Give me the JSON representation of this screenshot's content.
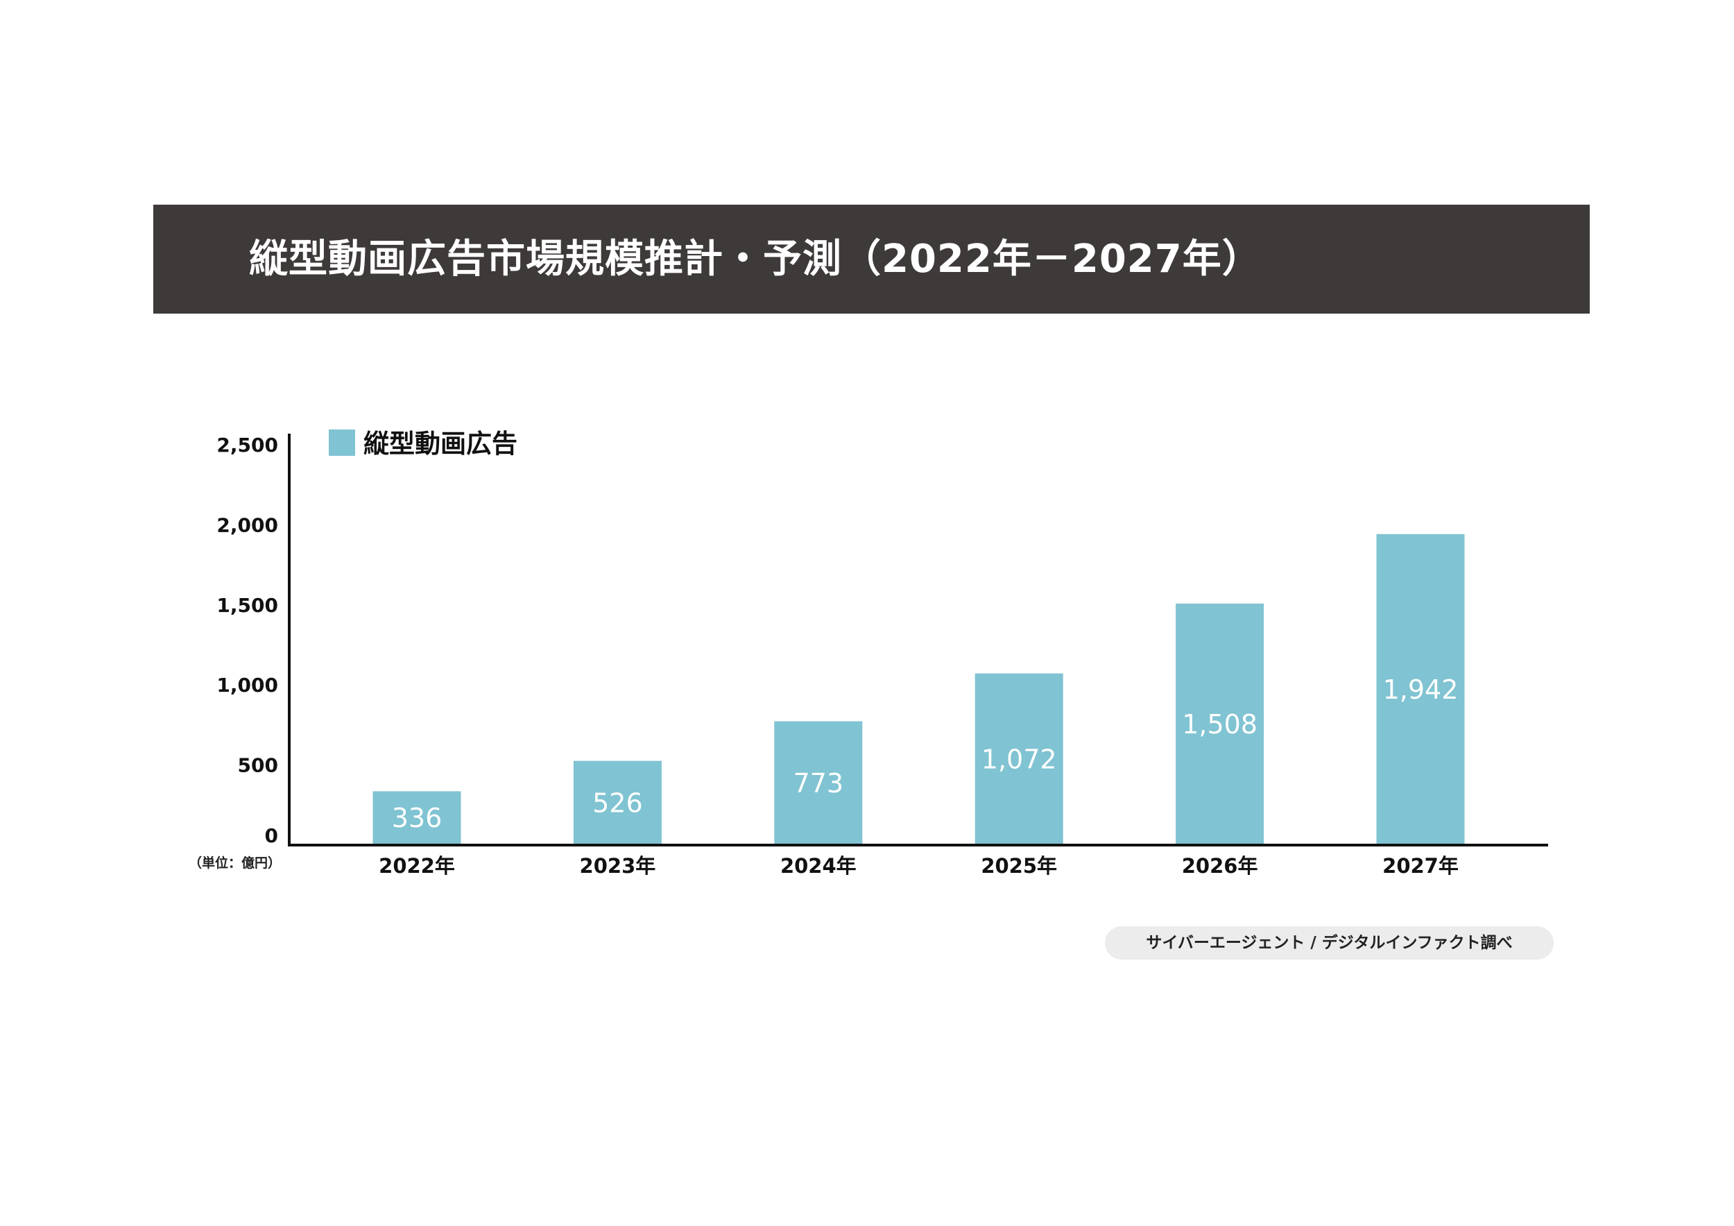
{
  "title": "縦型動画広告市場規模推計・予測（2022年－2027年）",
  "source": "サイバーエージェント / デジタルインファクト調べ",
  "colors": {
    "header_bg": "#3e3a39",
    "bar": "#80c3d2"
  },
  "chart_data": {
    "type": "bar",
    "title": "縦型動画広告市場規模推計・予測（2022年－2027年）",
    "categories": [
      "2022年",
      "2023年",
      "2024年",
      "2025年",
      "2026年",
      "2027年"
    ],
    "series": [
      {
        "name": "縦型動画広告",
        "values": [
          336,
          526,
          773,
          1072,
          1508,
          1942
        ]
      }
    ],
    "value_labels": [
      "336",
      "526",
      "773",
      "1,072",
      "1,508",
      "1,942"
    ],
    "yticks": [
      0,
      500,
      1000,
      1500,
      2000,
      2500
    ],
    "ytick_labels": [
      "0",
      "500",
      "1,000",
      "1,500",
      "2,000",
      "2,500"
    ],
    "ylim": [
      0,
      2500
    ],
    "ylabel": "（単位：億円）",
    "xlabel": "",
    "grid": false,
    "legend_position": "top-left"
  }
}
